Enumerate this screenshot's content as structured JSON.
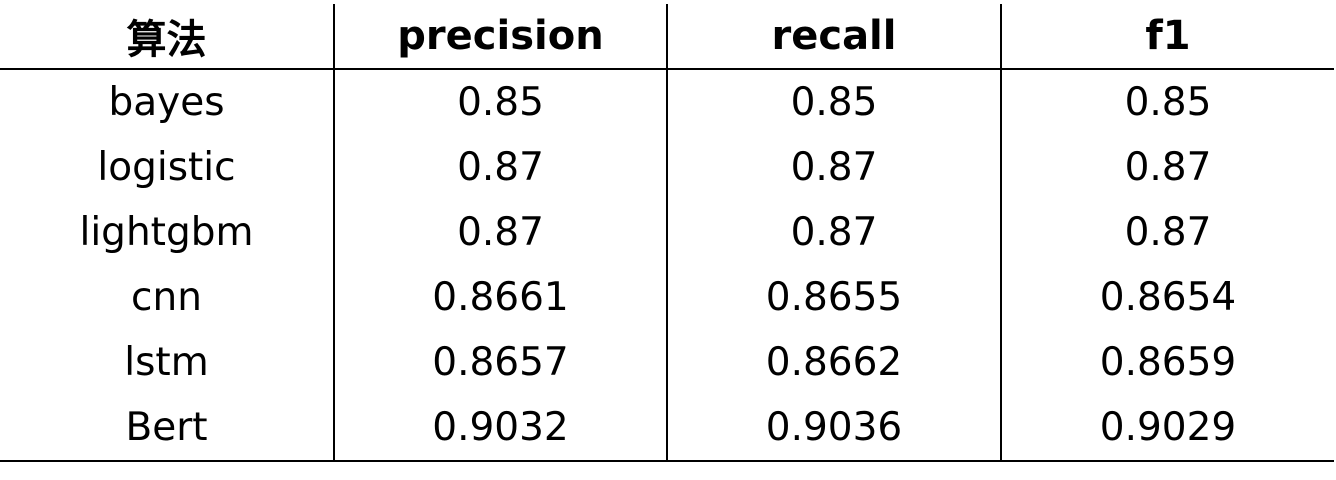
{
  "chart_data": {
    "type": "table",
    "columns": [
      "算法",
      "precision",
      "recall",
      "f1"
    ],
    "rows": [
      {
        "algorithm": "bayes",
        "precision": "0.85",
        "recall": "0.85",
        "f1": "0.85"
      },
      {
        "algorithm": "logistic",
        "precision": "0.87",
        "recall": "0.87",
        "f1": "0.87"
      },
      {
        "algorithm": "lightgbm",
        "precision": "0.87",
        "recall": "0.87",
        "f1": "0.87"
      },
      {
        "algorithm": "cnn",
        "precision": "0.8661",
        "recall": "0.8655",
        "f1": "0.8654"
      },
      {
        "algorithm": "lstm",
        "precision": "0.8657",
        "recall": "0.8662",
        "f1": "0.8659"
      },
      {
        "algorithm": "Bert",
        "precision": "0.9032",
        "recall": "0.9036",
        "f1": "0.9029"
      }
    ]
  }
}
